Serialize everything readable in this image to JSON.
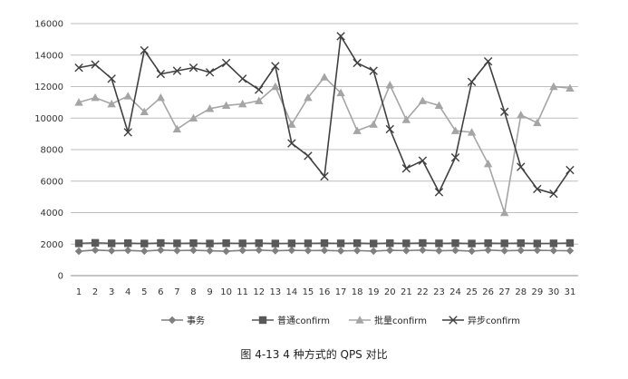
{
  "chart_data": {
    "type": "line",
    "title": "",
    "xlabel": "",
    "ylabel": "",
    "ylim": [
      0,
      16000
    ],
    "yticks": [
      0,
      2000,
      4000,
      6000,
      8000,
      10000,
      12000,
      14000,
      16000
    ],
    "grid": true,
    "legend_position": "bottom",
    "categories": [
      "1",
      "2",
      "3",
      "4",
      "5",
      "6",
      "7",
      "8",
      "9",
      "10",
      "11",
      "12",
      "13",
      "14",
      "15",
      "16",
      "17",
      "18",
      "19",
      "20",
      "21",
      "22",
      "23",
      "24",
      "25",
      "26",
      "27",
      "28",
      "29",
      "30",
      "31"
    ],
    "series": [
      {
        "name": "事务",
        "marker": "diamond",
        "color": "#7f7f7f",
        "values": [
          1550,
          1620,
          1580,
          1600,
          1560,
          1620,
          1590,
          1610,
          1580,
          1550,
          1600,
          1620,
          1580,
          1610,
          1590,
          1600,
          1570,
          1590,
          1560,
          1610,
          1590,
          1620,
          1580,
          1600,
          1560,
          1620,
          1580,
          1600,
          1610,
          1590,
          1580
        ]
      },
      {
        "name": "普通confirm",
        "marker": "square",
        "color": "#595959",
        "values": [
          2050,
          2080,
          2050,
          2060,
          2040,
          2070,
          2050,
          2060,
          2040,
          2060,
          2050,
          2060,
          2040,
          2050,
          2050,
          2060,
          2050,
          2060,
          2040,
          2060,
          2050,
          2070,
          2050,
          2060,
          2040,
          2060,
          2050,
          2060,
          2040,
          2050,
          2070
        ]
      },
      {
        "name": "批量confirm",
        "marker": "triangle",
        "color": "#a5a5a5",
        "values": [
          11000,
          11300,
          10900,
          11400,
          10400,
          11300,
          9300,
          10000,
          10600,
          10800,
          10900,
          11100,
          12000,
          9600,
          11300,
          12600,
          11600,
          9200,
          9600,
          12100,
          9900,
          11100,
          10800,
          9200,
          9100,
          7100,
          4000,
          10200,
          9700,
          12000,
          11900
        ]
      },
      {
        "name": "异步confirm",
        "marker": "x",
        "color": "#404040",
        "values": [
          13200,
          13400,
          12500,
          9100,
          14300,
          12800,
          13000,
          13200,
          12900,
          13500,
          12500,
          11800,
          13300,
          8400,
          7600,
          6300,
          15200,
          13500,
          13000,
          9300,
          6800,
          7300,
          5300,
          7500,
          12300,
          13600,
          10400,
          6900,
          5500,
          5200,
          6700
        ]
      }
    ]
  },
  "caption": "图 4-13   4 种方式的 QPS 对比"
}
